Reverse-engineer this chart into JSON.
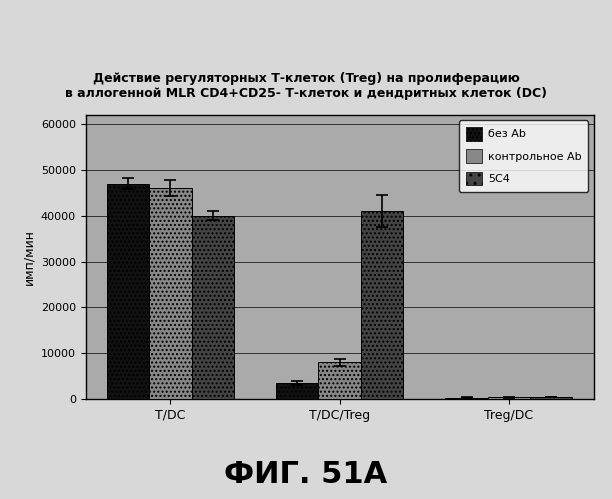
{
  "title_line1": "Действие регуляторных Т-клеток (Treg) на пролиферацию",
  "title_line2": "в аллогенной MLR CD4+CD25- Т-клеток и дендритных клеток (DC)",
  "ylabel": "имп/мин",
  "categories": [
    "T/DC",
    "T/DC/Treg",
    "Treg/DC"
  ],
  "series": {
    "без Ab": [
      47000,
      3500,
      300
    ],
    "контрольное Ab": [
      46000,
      8000,
      400
    ],
    "5C4": [
      40000,
      41000,
      500
    ]
  },
  "error_bars": {
    "без Ab": [
      1200,
      400,
      80
    ],
    "контрольное Ab": [
      1800,
      800,
      80
    ],
    "5C4": [
      1000,
      3500,
      80
    ]
  },
  "legend_labels": [
    "без Ab",
    "контрольное Ab",
    "5C4"
  ],
  "bar_colors": {
    "без Ab": "#111111",
    "контрольное Ab": "#888888",
    "5C4": "#444444"
  },
  "bar_hatches": {
    "без Ab": "....",
    "контрольное Ab": "....",
    "5C4": "...."
  },
  "legend_hatches": {
    "без Ab": "....",
    "контрольное Ab": "##",
    "5C4": ".."
  },
  "ylim": [
    0,
    62000
  ],
  "yticks": [
    0,
    10000,
    20000,
    30000,
    40000,
    50000,
    60000
  ],
  "fig_background": "#d8d8d8",
  "plot_area_color": "#aaaaaa",
  "fig_caption": "ФИГ. 51А",
  "caption_fontsize": 22
}
